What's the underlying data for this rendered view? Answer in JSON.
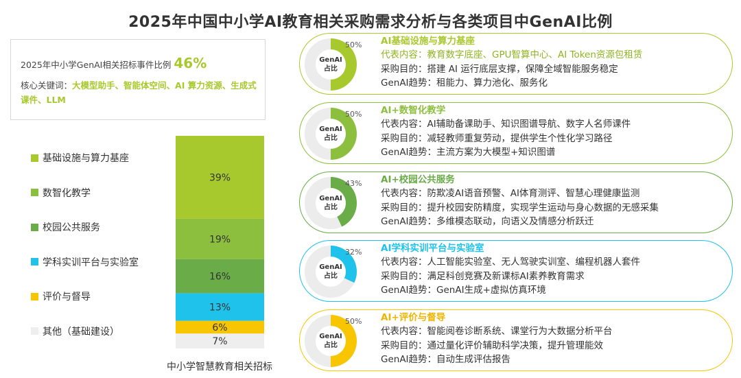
{
  "title": "2025年中国中小学AI教育相关采购需求分析与各类项目中GenAI比例",
  "summary": {
    "ratio_label": "2025年中小学GenAI相关招标事件比例",
    "ratio_value": "46%",
    "keywords_label": "核心关键词：",
    "keywords_value": "大模型助手、智能体空间、AI 算力资源、生成式课件、LLM"
  },
  "chart_data": {
    "type": "bar",
    "stacked": true,
    "xlabel": "中小学智慧教育相关招标",
    "categories": [
      "中小学智慧教育相关招标"
    ],
    "series": [
      {
        "name": "基础设施与算力基座",
        "value": 39,
        "label": "39%",
        "color": "#a8c92e"
      },
      {
        "name": "数智化教学",
        "value": 19,
        "label": "19%",
        "color": "#8dbf3e"
      },
      {
        "name": "校园公共服务",
        "value": 16,
        "label": "16%",
        "color": "#6aac47"
      },
      {
        "name": "学科实训平台与实验室",
        "value": 13,
        "label": "13%",
        "color": "#1ec2ea"
      },
      {
        "name": "评价与督导",
        "value": 6,
        "label": "6%",
        "color": "#f7c600"
      },
      {
        "name": "其他（基础建设）",
        "value": 7,
        "label": "7%",
        "color": "#eeeeee"
      }
    ],
    "ylim": [
      0,
      100
    ],
    "legend_position": "left"
  },
  "donut_center": {
    "line1": "GenAI",
    "line2": "占比"
  },
  "cards": [
    {
      "title": "AI基础设施与算力基座",
      "pct": 50,
      "pct_label": "50%",
      "color": "#a8c92e",
      "title_color": "#a8c92e",
      "line1": "代表内容：教育数字底座、GPU智算中心、AI Token资源包租赁",
      "line2": "采购目的：搭建 AI 运行底层支撑，保障全域智能服务稳定",
      "line3": "GenAI趋势：租能力、算力池化、服务化"
    },
    {
      "title": "AI+数智化教学",
      "pct": 50,
      "pct_label": "50%",
      "color": "#8dbf3e",
      "title_color": "#8dbf3e",
      "line1": "代表内容：AI辅助备课助手、知识图谱导航、数字人名师课件",
      "line2": "采购目的：减轻教师重复劳动，提供学生个性化学习路径",
      "line3": "GenAI趋势：主流方案为大模型+知识图谱"
    },
    {
      "title": "AI+校园公共服务",
      "pct": 43,
      "pct_label": "43%",
      "color": "#6aac47",
      "title_color": "#6aac47",
      "line1": "代表内容：防欺凌AI语音预警、AI体育测评、智慧心理健康监测",
      "line2": "采购目的：提升校园安防精度，实现学生运动与身心数据的无感采集",
      "line3": "GenAI趋势：多维模态联动，向语义及情感分析跃迁"
    },
    {
      "title": "AI学科实训平台与实验室",
      "pct": 32,
      "pct_label": "32%",
      "color": "#1ec2ea",
      "title_color": "#1ec2ea",
      "line1": "代表内容：人工智能实验室、无人驾驶实训室、编程机器人套件",
      "line2": "采购目的：满足科创竞赛及新课标AI素养教育需求",
      "line3": "GenAI趋势：GenAI生成+虚拟仿真环境"
    },
    {
      "title": "AI+评价与督导",
      "pct": 50,
      "pct_label": "50%",
      "color": "#f7c600",
      "title_color": "#f0b400",
      "line1": "代表内容：智能阅卷诊断系统、课堂行为大数据分析平台",
      "line2": "采购目的：通过量化评价辅助科学决策，提升管理能效",
      "line3": "GenAI趋势：自动生成评估报告"
    }
  ]
}
